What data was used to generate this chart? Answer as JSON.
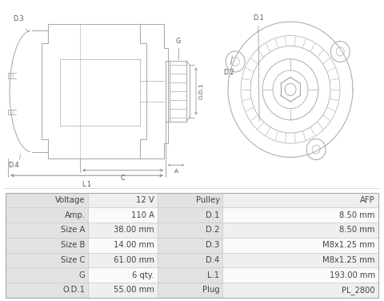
{
  "table_data": [
    [
      "Voltage",
      "12 V",
      "Pulley",
      "AFP"
    ],
    [
      "Amp.",
      "110 A",
      "D.1",
      "8.50 mm"
    ],
    [
      "Size A",
      "38.00 mm",
      "D.2",
      "8.50 mm"
    ],
    [
      "Size B",
      "14.00 mm",
      "D.3",
      "M8x1.25 mm"
    ],
    [
      "Size C",
      "61.00 mm",
      "D.4",
      "M8x1.25 mm"
    ],
    [
      "G",
      "6 qty.",
      "L.1",
      "193.00 mm"
    ],
    [
      "O.D.1",
      "55.00 mm",
      "Plug",
      "PL_2800"
    ]
  ],
  "header_bg": "#e2e2e2",
  "row_bg_alt": "#efefef",
  "row_bg_white": "#fafafa",
  "border_color": "#cccccc",
  "text_color": "#444444",
  "fig_bg": "#ffffff",
  "lc": "#aaaaaa",
  "lc2": "#bbbbbb",
  "label_color": "#555555",
  "dim_color": "#888888",
  "font_size_table": 7.2,
  "font_size_label": 5.8
}
